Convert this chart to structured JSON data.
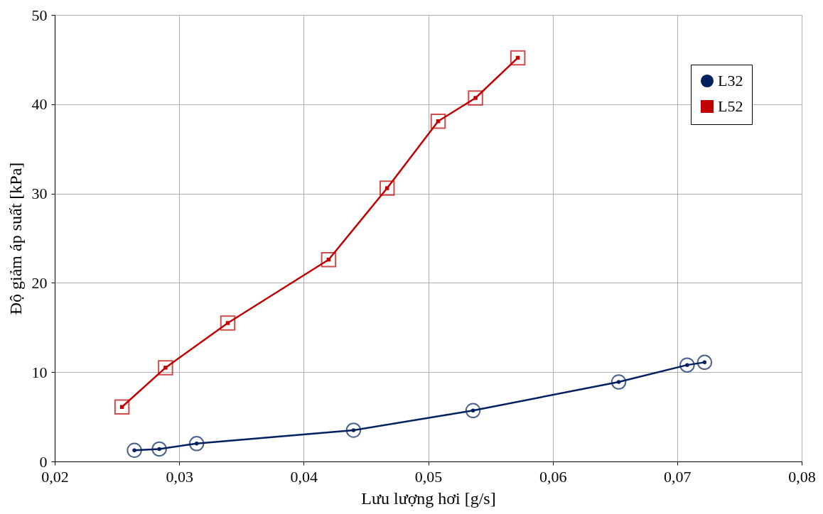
{
  "chart_data": {
    "type": "line",
    "xlabel": "Lưu lượng hơi [g/s]",
    "ylabel": "Độ giảm áp suất [kPa]",
    "xlim": [
      0.02,
      0.08
    ],
    "xticks": [
      {
        "value": 0.02,
        "label": "0,02"
      },
      {
        "value": 0.03,
        "label": "0,03"
      },
      {
        "value": 0.04,
        "label": "0,04"
      },
      {
        "value": 0.05,
        "label": "0,05"
      },
      {
        "value": 0.06,
        "label": "0,06"
      },
      {
        "value": 0.07,
        "label": "0,07"
      },
      {
        "value": 0.08,
        "label": "0,08"
      }
    ],
    "ylim": [
      0,
      50
    ],
    "yticks": [
      0,
      10,
      20,
      30,
      40,
      50
    ],
    "grid": true,
    "legend": "top right",
    "series": [
      {
        "name": "L32",
        "color": "#002060",
        "marker": "circle",
        "x": [
          0.0264,
          0.0284,
          0.0314,
          0.044,
          0.0536,
          0.0653,
          0.0708,
          0.0722
        ],
        "values": [
          1.25,
          1.4,
          2.0,
          3.5,
          5.7,
          8.9,
          10.8,
          11.1
        ]
      },
      {
        "name": "L52",
        "color": "#c00000",
        "marker": "square",
        "x": [
          0.0254,
          0.0289,
          0.0339,
          0.042,
          0.0467,
          0.0508,
          0.0538,
          0.0572
        ],
        "values": [
          6.1,
          10.5,
          15.5,
          22.6,
          30.6,
          38.1,
          40.7,
          45.2
        ]
      }
    ]
  }
}
